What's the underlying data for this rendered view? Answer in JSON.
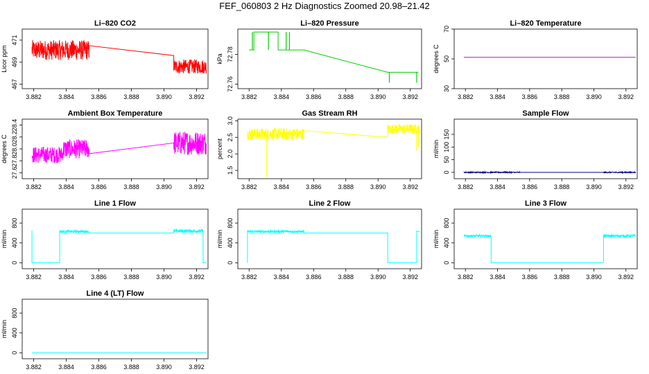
{
  "figure_title": "FEF_060803  2 Hz Diagnostics Zoomed 20.98–21.42",
  "chart_data": [
    {
      "type": "line",
      "title": "Li–820 CO2",
      "ylabel": "Licor ppm",
      "color": "#ff0000",
      "xlim": [
        3.8813,
        3.8927
      ],
      "ylim": [
        466.6,
        472.0
      ],
      "xticks": [
        3.882,
        3.884,
        3.886,
        3.888,
        3.89,
        3.892
      ],
      "xtick_labels": [
        "3.882",
        "3.884",
        "3.886",
        "3.888",
        "3.890",
        "3.892"
      ],
      "yticks": [
        467,
        469,
        471
      ],
      "ytick_labels": [
        "467",
        "469",
        "471"
      ],
      "segments": [
        {
          "x": [
            3.8819,
            3.8854
          ],
          "noise": {
            "center": 470.1,
            "amp": 0.9
          }
        },
        {
          "x": [
            3.8854,
            3.8906
          ],
          "y": [
            470.5,
            469.6
          ]
        },
        {
          "x": [
            3.8906,
            3.8926
          ],
          "noise": {
            "center": 468.6,
            "amp": 0.65
          }
        }
      ]
    },
    {
      "type": "line",
      "title": "Li–820 Pressure",
      "ylabel": "kPa",
      "color": "#00cc00",
      "xlim": [
        3.8813,
        3.8927
      ],
      "ylim": [
        72.757,
        72.797
      ],
      "xticks": [
        3.882,
        3.884,
        3.886,
        3.888,
        3.89,
        3.892
      ],
      "xtick_labels": [
        "3.882",
        "3.884",
        "3.886",
        "3.888",
        "3.890",
        "3.892"
      ],
      "yticks": [
        72.76,
        72.78
      ],
      "ytick_labels": [
        "72.76",
        "72.78"
      ],
      "segments": [
        {
          "x": [
            3.882,
            3.8823
          ],
          "y": [
            72.783,
            72.783
          ]
        },
        {
          "x": [
            3.8823,
            3.8838
          ],
          "y": [
            72.795,
            72.795
          ]
        },
        {
          "x": [
            3.8838,
            3.8854
          ],
          "y": [
            72.783,
            72.783
          ]
        },
        {
          "x": [
            3.8854,
            3.8906
          ],
          "y": [
            72.783,
            72.768
          ]
        },
        {
          "x": [
            3.8906,
            3.8925
          ],
          "y": [
            72.768,
            72.768
          ]
        }
      ],
      "spikes": [
        {
          "x": 3.8822,
          "y0": 72.783,
          "y1": 72.795
        },
        {
          "x": 3.8832,
          "y0": 72.783,
          "y1": 72.795
        },
        {
          "x": 3.8843,
          "y0": 72.783,
          "y1": 72.795
        },
        {
          "x": 3.8845,
          "y0": 72.783,
          "y1": 72.795
        },
        {
          "x": 3.8907,
          "y0": 72.761,
          "y1": 72.768
        },
        {
          "x": 3.8924,
          "y0": 72.761,
          "y1": 72.768
        }
      ]
    },
    {
      "type": "line",
      "title": "Li–820 Temperature",
      "ylabel": "degrees C",
      "color": "#cc00cc",
      "xlim": [
        3.8813,
        3.8927
      ],
      "ylim": [
        30,
        70
      ],
      "xticks": [
        3.882,
        3.884,
        3.886,
        3.888,
        3.89,
        3.892
      ],
      "xtick_labels": [
        "3.882",
        "3.884",
        "3.886",
        "3.888",
        "3.890",
        "3.892"
      ],
      "yticks": [
        30,
        50,
        70
      ],
      "ytick_labels": [
        "30",
        "50",
        "70"
      ],
      "segments": [
        {
          "x": [
            3.8819,
            3.8926
          ],
          "y": [
            51,
            51
          ]
        }
      ]
    },
    {
      "type": "line",
      "title": "Ambient Box Temperature",
      "ylabel": "degrees C",
      "color": "#ff00ff",
      "xlim": [
        3.8813,
        3.8927
      ],
      "ylim": [
        27.5,
        28.5
      ],
      "xticks": [
        3.882,
        3.884,
        3.886,
        3.888,
        3.89,
        3.892
      ],
      "xtick_labels": [
        "3.882",
        "3.884",
        "3.886",
        "3.888",
        "3.890",
        "3.892"
      ],
      "yticks": [
        27.6,
        27.8,
        28.0,
        28.2,
        28.4
      ],
      "ytick_labels": [
        "27.6",
        "27.8",
        "28.0",
        "28.2",
        "28.4"
      ],
      "segments": [
        {
          "x": [
            3.8819,
            3.8838
          ],
          "noise": {
            "center": 27.9,
            "amp": 0.14
          }
        },
        {
          "x": [
            3.8838,
            3.8854
          ],
          "noise": {
            "center": 28.0,
            "amp": 0.16
          }
        },
        {
          "x": [
            3.8854,
            3.8906
          ],
          "y": [
            27.92,
            28.1
          ]
        },
        {
          "x": [
            3.8906,
            3.8926
          ],
          "noise": {
            "center": 28.1,
            "amp": 0.2
          }
        }
      ]
    },
    {
      "type": "line",
      "title": "Gas Stream RH",
      "ylabel": "percent",
      "color": "#ffff00",
      "xlim": [
        3.8813,
        3.8927
      ],
      "ylim": [
        1.25,
        3.05
      ],
      "xticks": [
        3.882,
        3.884,
        3.886,
        3.888,
        3.89,
        3.892
      ],
      "xtick_labels": [
        "3.882",
        "3.884",
        "3.886",
        "3.888",
        "3.890",
        "3.892"
      ],
      "yticks": [
        1.5,
        2.0,
        2.5,
        3.0
      ],
      "ytick_labels": [
        "1.5",
        "2.0",
        "2.5",
        "3.0"
      ],
      "segments": [
        {
          "x": [
            3.8819,
            3.8854
          ],
          "noise": {
            "center": 2.6,
            "amp": 0.18
          }
        },
        {
          "x": [
            3.8854,
            3.8906
          ],
          "y": [
            2.7,
            2.5
          ]
        },
        {
          "x": [
            3.8906,
            3.8926
          ],
          "noise": {
            "center": 2.75,
            "amp": 0.15
          }
        }
      ],
      "spikes": [
        {
          "x": 3.8831,
          "y0": 2.6,
          "y1": 1.3
        },
        {
          "x": 3.8924,
          "y0": 2.7,
          "y1": 2.1
        },
        {
          "x": 3.8925,
          "y0": 2.7,
          "y1": 2.2
        }
      ]
    },
    {
      "type": "line",
      "title": "Sample Flow",
      "ylabel": "ml/min",
      "color": "#00008b",
      "xlim": [
        3.8813,
        3.8927
      ],
      "ylim": [
        -25,
        210
      ],
      "xticks": [
        3.882,
        3.884,
        3.886,
        3.888,
        3.89,
        3.892
      ],
      "xtick_labels": [
        "3.882",
        "3.884",
        "3.886",
        "3.888",
        "3.890",
        "3.892"
      ],
      "yticks": [
        0,
        50,
        100,
        150
      ],
      "ytick_labels": [
        "0",
        "50",
        "100",
        "150"
      ],
      "segments": [
        {
          "x": [
            3.8819,
            3.8854
          ],
          "noise": {
            "center": 0,
            "amp": 2
          }
        },
        {
          "x": [
            3.8854,
            3.8906
          ],
          "y": [
            0,
            0
          ]
        },
        {
          "x": [
            3.8906,
            3.8926
          ],
          "noise": {
            "center": 0,
            "amp": 2
          }
        }
      ]
    },
    {
      "type": "line",
      "title": "Line 1 Flow",
      "ylabel": "ml/min",
      "color": "#00ffff",
      "xlim": [
        3.8813,
        3.8927
      ],
      "ylim": [
        -120,
        1080
      ],
      "xticks": [
        3.882,
        3.884,
        3.886,
        3.888,
        3.89,
        3.892
      ],
      "xtick_labels": [
        "3.882",
        "3.884",
        "3.886",
        "3.888",
        "3.890",
        "3.892"
      ],
      "yticks": [
        0,
        400,
        800
      ],
      "ytick_labels": [
        "0",
        "400",
        "800"
      ],
      "segments": [
        {
          "x": [
            3.8819,
            3.8819
          ],
          "y": [
            650,
            0
          ]
        },
        {
          "x": [
            3.8819,
            3.8836
          ],
          "y": [
            0,
            0
          ]
        },
        {
          "x": [
            3.8836,
            3.8836
          ],
          "y": [
            0,
            660
          ]
        },
        {
          "x": [
            3.8836,
            3.8854
          ],
          "noise": {
            "center": 630,
            "amp": 25
          }
        },
        {
          "x": [
            3.8854,
            3.8906
          ],
          "y": [
            600,
            600
          ]
        },
        {
          "x": [
            3.8906,
            3.8924
          ],
          "noise": {
            "center": 640,
            "amp": 35
          }
        },
        {
          "x": [
            3.8924,
            3.8924
          ],
          "y": [
            620,
            0
          ]
        },
        {
          "x": [
            3.8924,
            3.8926
          ],
          "y": [
            0,
            0
          ]
        }
      ]
    },
    {
      "type": "line",
      "title": "Line 2 Flow",
      "ylabel": "ml/min",
      "color": "#00ffff",
      "xlim": [
        3.8813,
        3.8927
      ],
      "ylim": [
        -120,
        1080
      ],
      "xticks": [
        3.882,
        3.884,
        3.886,
        3.888,
        3.89,
        3.892
      ],
      "xtick_labels": [
        "3.882",
        "3.884",
        "3.886",
        "3.888",
        "3.890",
        "3.892"
      ],
      "yticks": [
        0,
        400,
        800
      ],
      "ytick_labels": [
        "0",
        "400",
        "800"
      ],
      "segments": [
        {
          "x": [
            3.8819,
            3.8819
          ],
          "y": [
            0,
            640
          ]
        },
        {
          "x": [
            3.8819,
            3.8854
          ],
          "noise": {
            "center": 630,
            "amp": 25
          }
        },
        {
          "x": [
            3.8854,
            3.8906
          ],
          "y": [
            600,
            600
          ]
        },
        {
          "x": [
            3.8906,
            3.8906
          ],
          "y": [
            600,
            0
          ]
        },
        {
          "x": [
            3.8906,
            3.8924
          ],
          "y": [
            0,
            0
          ]
        },
        {
          "x": [
            3.8924,
            3.8924
          ],
          "y": [
            0,
            640
          ]
        },
        {
          "x": [
            3.8924,
            3.8926
          ],
          "y": [
            640,
            620
          ]
        }
      ]
    },
    {
      "type": "line",
      "title": "Line 3 Flow",
      "ylabel": "ml/min",
      "color": "#00ffff",
      "xlim": [
        3.8813,
        3.8927
      ],
      "ylim": [
        -120,
        1080
      ],
      "xticks": [
        3.882,
        3.884,
        3.886,
        3.888,
        3.89,
        3.892
      ],
      "xtick_labels": [
        "3.882",
        "3.884",
        "3.886",
        "3.888",
        "3.890",
        "3.892"
      ],
      "yticks": [
        0,
        400,
        800
      ],
      "ytick_labels": [
        "0",
        "400",
        "800"
      ],
      "segments": [
        {
          "x": [
            3.8819,
            3.8836
          ],
          "noise": {
            "center": 540,
            "amp": 25
          }
        },
        {
          "x": [
            3.8836,
            3.8836
          ],
          "y": [
            540,
            0
          ]
        },
        {
          "x": [
            3.8836,
            3.8906
          ],
          "y": [
            0,
            0
          ]
        },
        {
          "x": [
            3.8906,
            3.8906
          ],
          "y": [
            0,
            560
          ]
        },
        {
          "x": [
            3.8906,
            3.8926
          ],
          "noise": {
            "center": 540,
            "amp": 30
          }
        }
      ]
    },
    {
      "type": "line",
      "title": "Line 4 (LT) Flow",
      "ylabel": "ml/min",
      "color": "#00ffff",
      "xlim": [
        3.8813,
        3.8927
      ],
      "ylim": [
        -120,
        1080
      ],
      "xticks": [
        3.882,
        3.884,
        3.886,
        3.888,
        3.89,
        3.892
      ],
      "xtick_labels": [
        "3.882",
        "3.884",
        "3.886",
        "3.888",
        "3.890",
        "3.892"
      ],
      "yticks": [
        0,
        400,
        800
      ],
      "ytick_labels": [
        "0",
        "400",
        "800"
      ],
      "segments": [
        {
          "x": [
            3.8819,
            3.8926
          ],
          "y": [
            0,
            0
          ]
        }
      ]
    }
  ]
}
